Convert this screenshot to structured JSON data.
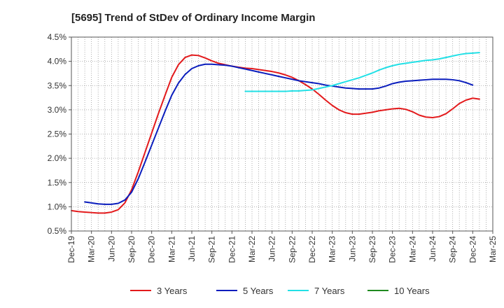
{
  "chart_data": {
    "type": "line",
    "title": "[5695]  Trend of StDev of Ordinary Income Margin",
    "xlabel": "",
    "ylabel": "",
    "x_ticks": [
      "Dec-19",
      "Mar-20",
      "Jun-20",
      "Sep-20",
      "Dec-20",
      "Mar-21",
      "Jun-21",
      "Sep-21",
      "Dec-21",
      "Mar-22",
      "Jun-22",
      "Sep-22",
      "Dec-22",
      "Mar-23",
      "Jun-23",
      "Sep-23",
      "Dec-23",
      "Mar-24",
      "Jun-24",
      "Sep-24",
      "Dec-24",
      "Mar-25"
    ],
    "y_ticks": [
      "0.5%",
      "1.0%",
      "1.5%",
      "2.0%",
      "2.5%",
      "3.0%",
      "3.5%",
      "4.0%",
      "4.5%"
    ],
    "ylim": [
      0.5,
      4.5
    ],
    "grid": true,
    "legend_position": "bottom",
    "series": [
      {
        "name": "3 Years",
        "color": "#e31a1c",
        "values": [
          [
            "Dec-19",
            0.92
          ],
          [
            "Jan-20",
            0.9
          ],
          [
            "Feb-20",
            0.89
          ],
          [
            "Mar-20",
            0.88
          ],
          [
            "Apr-20",
            0.87
          ],
          [
            "May-20",
            0.87
          ],
          [
            "Jun-20",
            0.89
          ],
          [
            "Jul-20",
            0.94
          ],
          [
            "Aug-20",
            1.08
          ],
          [
            "Sep-20",
            1.35
          ],
          [
            "Oct-20",
            1.72
          ],
          [
            "Nov-20",
            2.12
          ],
          [
            "Dec-20",
            2.52
          ],
          [
            "Jan-21",
            2.92
          ],
          [
            "Feb-21",
            3.3
          ],
          [
            "Mar-21",
            3.67
          ],
          [
            "Apr-21",
            3.93
          ],
          [
            "May-21",
            4.08
          ],
          [
            "Jun-21",
            4.13
          ],
          [
            "Jul-21",
            4.12
          ],
          [
            "Aug-21",
            4.07
          ],
          [
            "Sep-21",
            4.01
          ],
          [
            "Oct-21",
            3.96
          ],
          [
            "Nov-21",
            3.93
          ],
          [
            "Dec-21",
            3.9
          ],
          [
            "Jan-22",
            3.88
          ],
          [
            "Feb-22",
            3.86
          ],
          [
            "Mar-22",
            3.85
          ],
          [
            "Apr-22",
            3.83
          ],
          [
            "May-22",
            3.81
          ],
          [
            "Jun-22",
            3.79
          ],
          [
            "Jul-22",
            3.76
          ],
          [
            "Aug-22",
            3.72
          ],
          [
            "Sep-22",
            3.67
          ],
          [
            "Oct-22",
            3.6
          ],
          [
            "Nov-22",
            3.52
          ],
          [
            "Dec-22",
            3.43
          ],
          [
            "Jan-23",
            3.32
          ],
          [
            "Feb-23",
            3.2
          ],
          [
            "Mar-23",
            3.09
          ],
          [
            "Apr-23",
            3.0
          ],
          [
            "May-23",
            2.94
          ],
          [
            "Jun-23",
            2.91
          ],
          [
            "Jul-23",
            2.91
          ],
          [
            "Aug-23",
            2.93
          ],
          [
            "Sep-23",
            2.95
          ],
          [
            "Oct-23",
            2.98
          ],
          [
            "Nov-23",
            3.0
          ],
          [
            "Dec-23",
            3.02
          ],
          [
            "Jan-24",
            3.03
          ],
          [
            "Feb-24",
            3.01
          ],
          [
            "Mar-24",
            2.96
          ],
          [
            "Apr-24",
            2.89
          ],
          [
            "May-24",
            2.85
          ],
          [
            "Jun-24",
            2.84
          ],
          [
            "Jul-24",
            2.86
          ],
          [
            "Aug-24",
            2.92
          ],
          [
            "Sep-24",
            3.02
          ],
          [
            "Oct-24",
            3.13
          ],
          [
            "Nov-24",
            3.2
          ],
          [
            "Dec-24",
            3.24
          ],
          [
            "Jan-25",
            3.22
          ]
        ]
      },
      {
        "name": "5 Years",
        "color": "#0a1dbd",
        "values": [
          [
            "Feb-20",
            1.1
          ],
          [
            "Mar-20",
            1.08
          ],
          [
            "Apr-20",
            1.06
          ],
          [
            "May-20",
            1.05
          ],
          [
            "Jun-20",
            1.05
          ],
          [
            "Jul-20",
            1.07
          ],
          [
            "Aug-20",
            1.14
          ],
          [
            "Sep-20",
            1.3
          ],
          [
            "Oct-20",
            1.58
          ],
          [
            "Nov-20",
            1.92
          ],
          [
            "Dec-20",
            2.27
          ],
          [
            "Jan-21",
            2.62
          ],
          [
            "Feb-21",
            2.97
          ],
          [
            "Mar-21",
            3.3
          ],
          [
            "Apr-21",
            3.55
          ],
          [
            "May-21",
            3.73
          ],
          [
            "Jun-21",
            3.85
          ],
          [
            "Jul-21",
            3.91
          ],
          [
            "Aug-21",
            3.94
          ],
          [
            "Sep-21",
            3.94
          ],
          [
            "Oct-21",
            3.93
          ],
          [
            "Nov-21",
            3.92
          ],
          [
            "Dec-21",
            3.9
          ],
          [
            "Jan-22",
            3.87
          ],
          [
            "Feb-22",
            3.84
          ],
          [
            "Mar-22",
            3.81
          ],
          [
            "Apr-22",
            3.78
          ],
          [
            "May-22",
            3.75
          ],
          [
            "Jun-22",
            3.72
          ],
          [
            "Jul-22",
            3.69
          ],
          [
            "Aug-22",
            3.66
          ],
          [
            "Sep-22",
            3.63
          ],
          [
            "Oct-22",
            3.6
          ],
          [
            "Nov-22",
            3.58
          ],
          [
            "Dec-22",
            3.56
          ],
          [
            "Jan-23",
            3.54
          ],
          [
            "Feb-23",
            3.51
          ],
          [
            "Mar-23",
            3.49
          ],
          [
            "Apr-23",
            3.47
          ],
          [
            "May-23",
            3.45
          ],
          [
            "Jun-23",
            3.44
          ],
          [
            "Jul-23",
            3.43
          ],
          [
            "Aug-23",
            3.43
          ],
          [
            "Sep-23",
            3.43
          ],
          [
            "Oct-23",
            3.45
          ],
          [
            "Nov-23",
            3.49
          ],
          [
            "Dec-23",
            3.54
          ],
          [
            "Jan-24",
            3.57
          ],
          [
            "Feb-24",
            3.59
          ],
          [
            "Mar-24",
            3.6
          ],
          [
            "Apr-24",
            3.61
          ],
          [
            "May-24",
            3.62
          ],
          [
            "Jun-24",
            3.63
          ],
          [
            "Jul-24",
            3.63
          ],
          [
            "Aug-24",
            3.63
          ],
          [
            "Sep-24",
            3.62
          ],
          [
            "Oct-24",
            3.6
          ],
          [
            "Nov-24",
            3.56
          ],
          [
            "Dec-24",
            3.51
          ]
        ]
      },
      {
        "name": "7 Years",
        "color": "#22e0e6",
        "values": [
          [
            "Feb-22",
            3.38
          ],
          [
            "Mar-22",
            3.38
          ],
          [
            "Apr-22",
            3.38
          ],
          [
            "May-22",
            3.38
          ],
          [
            "Jun-22",
            3.38
          ],
          [
            "Jul-22",
            3.38
          ],
          [
            "Aug-22",
            3.38
          ],
          [
            "Sep-22",
            3.39
          ],
          [
            "Oct-22",
            3.39
          ],
          [
            "Nov-22",
            3.4
          ],
          [
            "Dec-22",
            3.41
          ],
          [
            "Jan-23",
            3.44
          ],
          [
            "Feb-23",
            3.47
          ],
          [
            "Mar-23",
            3.5
          ],
          [
            "Apr-23",
            3.54
          ],
          [
            "May-23",
            3.58
          ],
          [
            "Jun-23",
            3.62
          ],
          [
            "Jul-23",
            3.66
          ],
          [
            "Aug-23",
            3.71
          ],
          [
            "Sep-23",
            3.76
          ],
          [
            "Oct-23",
            3.82
          ],
          [
            "Nov-23",
            3.87
          ],
          [
            "Dec-23",
            3.91
          ],
          [
            "Jan-24",
            3.94
          ],
          [
            "Feb-24",
            3.96
          ],
          [
            "Mar-24",
            3.98
          ],
          [
            "Apr-24",
            4.0
          ],
          [
            "May-24",
            4.02
          ],
          [
            "Jun-24",
            4.03
          ],
          [
            "Jul-24",
            4.05
          ],
          [
            "Aug-24",
            4.08
          ],
          [
            "Sep-24",
            4.11
          ],
          [
            "Oct-24",
            4.14
          ],
          [
            "Nov-24",
            4.16
          ],
          [
            "Dec-24",
            4.17
          ],
          [
            "Jan-25",
            4.18
          ]
        ]
      },
      {
        "name": "10 Years",
        "color": "#1f8a1f",
        "values": []
      }
    ]
  }
}
